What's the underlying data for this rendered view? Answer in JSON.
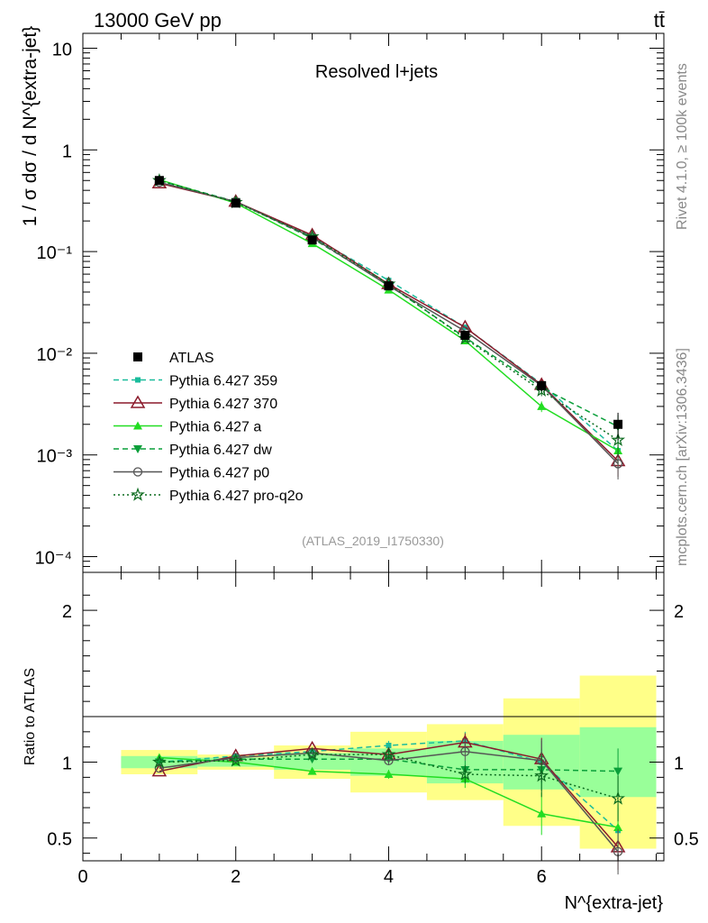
{
  "header": {
    "energy": "13000 GeV pp",
    "process": "tt̄"
  },
  "side_text": {
    "rivet": "Rivet 4.1.0, ≥ 100k events",
    "mcplots": "mcplots.cern.ch [arXiv:1306.3436]"
  },
  "chart_data": [
    {
      "type": "line",
      "panel": "main",
      "title": "Resolved l+jets",
      "watermark": "(ATLAS_2019_I1750330)",
      "ylabel": "1 / σ dσ / d N^{extra-jet}",
      "yscale": "log",
      "ylim": [
        7e-05,
        14
      ],
      "xlim": [
        0,
        7.6
      ],
      "yticks": [
        "10",
        "1",
        "10⁻¹",
        "10⁻²",
        "10⁻³",
        "10⁻⁴"
      ],
      "x": [
        1,
        2,
        3,
        4,
        5,
        6,
        7
      ],
      "series": [
        {
          "name": "ATLAS",
          "color": "#000000",
          "values": [
            0.5,
            0.3,
            0.13,
            0.046,
            0.015,
            0.0048,
            0.002
          ]
        },
        {
          "name": "Pythia 6.427 359",
          "color": "#1abc9c",
          "values": [
            0.5,
            0.31,
            0.14,
            0.052,
            0.018,
            0.005,
            0.0011
          ]
        },
        {
          "name": "Pythia 6.427 370",
          "color": "#8b1a2b",
          "values": [
            0.47,
            0.31,
            0.145,
            0.048,
            0.018,
            0.0049,
            0.00087
          ]
        },
        {
          "name": "Pythia 6.427 a",
          "color": "#22dd22",
          "values": [
            0.51,
            0.3,
            0.12,
            0.042,
            0.0133,
            0.003,
            0.0011
          ]
        },
        {
          "name": "Pythia 6.427 dw",
          "color": "#0a9f3a",
          "values": [
            0.5,
            0.31,
            0.135,
            0.047,
            0.0143,
            0.0046,
            0.0019
          ]
        },
        {
          "name": "Pythia 6.427 p0",
          "color": "#555555",
          "values": [
            0.48,
            0.31,
            0.138,
            0.046,
            0.0165,
            0.0048,
            0.00082
          ]
        },
        {
          "name": "Pythia 6.427 pro-q2o",
          "color": "#0b6b1e",
          "values": [
            0.5,
            0.305,
            0.14,
            0.048,
            0.014,
            0.0043,
            0.0014
          ]
        }
      ]
    },
    {
      "type": "line",
      "panel": "ratio",
      "ylabel": "Ratio to ATLAS",
      "xlabel": "N^{extra-jet}",
      "ylim": [
        0.35,
        2.25
      ],
      "xlim": [
        0,
        7.6
      ],
      "xticks": [
        "0",
        "2",
        "4",
        "6"
      ],
      "yticks": [
        "2",
        "1",
        "0.5"
      ],
      "x": [
        1,
        2,
        3,
        4,
        5,
        6,
        7
      ],
      "band_inner": [
        [
          0.96,
          1.04
        ],
        [
          0.97,
          1.03
        ],
        [
          0.95,
          1.06
        ],
        [
          0.91,
          1.09
        ],
        [
          0.86,
          1.14
        ],
        [
          0.82,
          1.18
        ],
        [
          0.77,
          1.23
        ]
      ],
      "band_outer": [
        [
          0.92,
          1.08
        ],
        [
          0.95,
          1.05
        ],
        [
          0.89,
          1.11
        ],
        [
          0.8,
          1.2
        ],
        [
          0.75,
          1.25
        ],
        [
          0.58,
          1.42
        ],
        [
          0.43,
          1.57
        ]
      ],
      "series": [
        {
          "name": "Pythia 6.427 359",
          "values": [
            1.0,
            1.04,
            1.07,
            1.11,
            1.14,
            1.0,
            0.55
          ]
        },
        {
          "name": "Pythia 6.427 370",
          "values": [
            0.94,
            1.04,
            1.09,
            1.05,
            1.13,
            1.02,
            0.44
          ]
        },
        {
          "name": "Pythia 6.427 a",
          "values": [
            1.03,
            1.0,
            0.94,
            0.92,
            0.89,
            0.66,
            0.57
          ]
        },
        {
          "name": "Pythia 6.427 dw",
          "values": [
            1.0,
            1.02,
            1.02,
            1.02,
            0.95,
            0.95,
            0.94
          ]
        },
        {
          "name": "Pythia 6.427 p0",
          "values": [
            0.96,
            1.03,
            1.06,
            1.01,
            1.07,
            1.01,
            0.41
          ]
        },
        {
          "name": "Pythia 6.427 pro-q2o",
          "values": [
            1.0,
            1.01,
            1.05,
            1.05,
            0.92,
            0.91,
            0.76
          ]
        }
      ]
    }
  ]
}
